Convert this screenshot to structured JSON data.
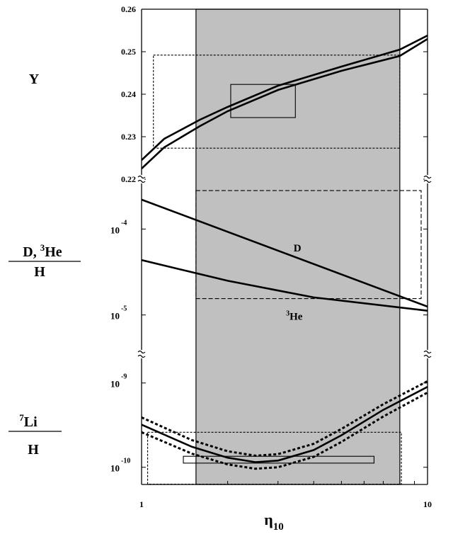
{
  "chart_data": {
    "type": "line",
    "x_scale": "log",
    "xlim": [
      1,
      10
    ],
    "xlabel_main": "η",
    "xlabel_sub": "10",
    "x_ticks": [
      {
        "value": 1,
        "label": "1"
      },
      {
        "value": 10,
        "label": "10"
      }
    ],
    "shaded_band": {
      "x": [
        1.55,
        8.0
      ],
      "color": "#c0c0c0"
    },
    "panels": [
      {
        "id": "Y",
        "ylabel": "Y",
        "y_scale": "linear",
        "ylim": [
          0.22,
          0.26
        ],
        "y_ticks": [
          {
            "value": 0.22,
            "label": "0.22"
          },
          {
            "value": 0.23,
            "label": "0.23"
          },
          {
            "value": 0.24,
            "label": "0.24"
          },
          {
            "value": 0.25,
            "label": "0.25"
          },
          {
            "value": 0.26,
            "label": "0.26"
          }
        ],
        "series": [
          {
            "style": "solid",
            "x": [
              1,
              1.2,
              1.6,
              2,
              3,
              5,
              8,
              10
            ],
            "y": [
              0.2245,
              0.2295,
              0.234,
              0.237,
              0.242,
              0.2465,
              0.2505,
              0.2538
            ]
          },
          {
            "style": "solid",
            "x": [
              1,
              1.2,
              1.6,
              2,
              3,
              5,
              8,
              10
            ],
            "y": [
              0.2225,
              0.2275,
              0.2325,
              0.236,
              0.241,
              0.2455,
              0.249,
              0.253
            ]
          }
        ],
        "boxes": [
          {
            "style": "solid",
            "x": [
              2.05,
              3.45
            ],
            "y": [
              0.2345,
              0.2423
            ]
          },
          {
            "style": "dotted",
            "x": [
              1.1,
              8.0
            ],
            "y": [
              0.2273,
              0.2492
            ]
          }
        ],
        "annotations": []
      },
      {
        "id": "DHe",
        "ylabel_top": "D,  ",
        "ylabel_top_sup": "3",
        "ylabel_top_after": "He",
        "ylabel_bottom": "H",
        "y_scale": "log",
        "ylim": [
          3.5e-06,
          0.00038
        ],
        "y_ticks": [
          {
            "value": 0.0001,
            "base": "10",
            "exp": "-4"
          },
          {
            "value": 1e-05,
            "base": "10",
            "exp": "-5"
          }
        ],
        "series": [
          {
            "style": "solid",
            "x": [
              1,
              10
            ],
            "y": [
              0.00022,
              1.25e-05
            ]
          },
          {
            "style": "solid",
            "x": [
              1,
              2,
              4,
              10
            ],
            "y": [
              4.35e-05,
              2.5e-05,
              1.6e-05,
              1.12e-05
            ]
          }
        ],
        "boxes": [
          {
            "style": "dashed",
            "x": [
              1.55,
              9.5
            ],
            "y": [
              1.55e-05,
              0.00028
            ]
          }
        ],
        "annotations": [
          {
            "text": "D",
            "x": 3.4,
            "y": 5.5e-05
          },
          {
            "text": "He",
            "sup": "3",
            "x": 3.2,
            "y": 8.8e-06
          }
        ]
      },
      {
        "id": "Li",
        "ylabel_top_sup": "7",
        "ylabel_top": "Li",
        "ylabel_bottom": "H",
        "y_scale": "log",
        "ylim": [
          6.25e-11,
          2.2e-09
        ],
        "y_ticks": [
          {
            "value": 1e-09,
            "base": "10",
            "exp": "-9"
          },
          {
            "value": 1e-10,
            "base": "10",
            "exp": "-10"
          }
        ],
        "series": [
          {
            "style": "solid",
            "x": [
              1,
              1.5,
              2,
              2.5,
              3,
              4,
              5,
              7,
              10
            ],
            "y": [
              3.2e-10,
              1.75e-10,
              1.3e-10,
              1.15e-10,
              1.2e-10,
              1.6e-10,
              2.4e-10,
              4.8e-10,
              9e-10
            ]
          },
          {
            "style": "dotted",
            "x": [
              1,
              1.5,
              2,
              2.5,
              3,
              4,
              5,
              7,
              10
            ],
            "y": [
              3.9e-10,
              2.1e-10,
              1.55e-10,
              1.37e-10,
              1.43e-10,
              1.9e-10,
              2.85e-10,
              5.6e-10,
              1.05e-09
            ]
          },
          {
            "style": "dotted",
            "x": [
              1,
              1.5,
              2,
              2.5,
              3,
              4,
              5,
              7,
              10
            ],
            "y": [
              2.6e-10,
              1.45e-10,
              1.08e-10,
              9.6e-11,
              1e-10,
              1.33e-10,
              2e-10,
              4e-10,
              7.7e-10
            ]
          }
        ],
        "boxes": [
          {
            "style": "solid",
            "x": [
              1.4,
              6.5
            ],
            "y": [
              1.12e-10,
              1.35e-10
            ]
          },
          {
            "style": "dotted",
            "x": [
              1.05,
              8.1
            ],
            "y": [
              6.3e-11,
              2.6e-10
            ]
          }
        ],
        "annotations": []
      }
    ]
  }
}
